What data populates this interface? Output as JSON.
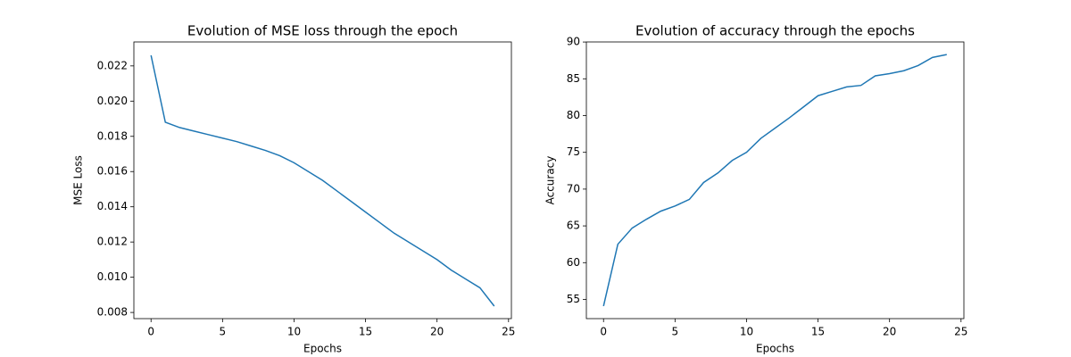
{
  "chart_data": [
    {
      "type": "line",
      "title": "Evolution of MSE loss through the epoch",
      "xlabel": "Epochs",
      "ylabel": "MSE Loss",
      "x": [
        0,
        1,
        2,
        3,
        4,
        5,
        6,
        7,
        8,
        9,
        10,
        11,
        12,
        13,
        14,
        15,
        16,
        17,
        18,
        19,
        20,
        21,
        22,
        23,
        24
      ],
      "series": [
        {
          "color": "#1f77b4",
          "values": [
            0.0226,
            0.0188,
            0.0185,
            0.0183,
            0.0181,
            0.0179,
            0.0177,
            0.01745,
            0.0172,
            0.0169,
            0.0165,
            0.016,
            0.0155,
            0.0149,
            0.0143,
            0.0137,
            0.0131,
            0.0125,
            0.012,
            0.0115,
            0.011,
            0.0104,
            0.0099,
            0.0094,
            0.00836
          ]
        }
      ],
      "xlim": [
        -1.2,
        25.2
      ],
      "xticks": [
        0,
        5,
        10,
        15,
        20,
        25
      ],
      "ylim": [
        0.00765,
        0.02336
      ],
      "yticks": [
        0.008,
        {
          "value": 0.01,
          "label": "0.010"
        },
        0.012,
        0.014,
        0.016,
        0.018,
        {
          "value": 0.02,
          "label": "0.020"
        },
        0.022
      ]
    },
    {
      "type": "line",
      "title": "Evolution of accuracy through the epochs",
      "xlabel": "Epochs",
      "ylabel": "Accuracy",
      "x": [
        0,
        1,
        2,
        3,
        4,
        5,
        6,
        7,
        8,
        9,
        10,
        11,
        12,
        13,
        14,
        15,
        16,
        17,
        18,
        19,
        20,
        21,
        22,
        23,
        24
      ],
      "series": [
        {
          "color": "#1f77b4",
          "values": [
            54.1,
            62.5,
            64.7,
            65.9,
            67.0,
            67.7,
            68.6,
            70.9,
            72.2,
            73.9,
            75.0,
            76.9,
            78.3,
            79.7,
            81.2,
            82.7,
            83.3,
            83.9,
            84.1,
            85.4,
            85.7,
            86.1,
            86.8,
            87.9,
            88.3
          ]
        }
      ],
      "xlim": [
        -1.2,
        25.2
      ],
      "xticks": [
        0,
        5,
        10,
        15,
        20,
        25
      ],
      "ylim": [
        52.39,
        90.01
      ],
      "yticks": [
        55,
        60,
        65,
        70,
        75,
        80,
        85,
        90
      ]
    }
  ]
}
